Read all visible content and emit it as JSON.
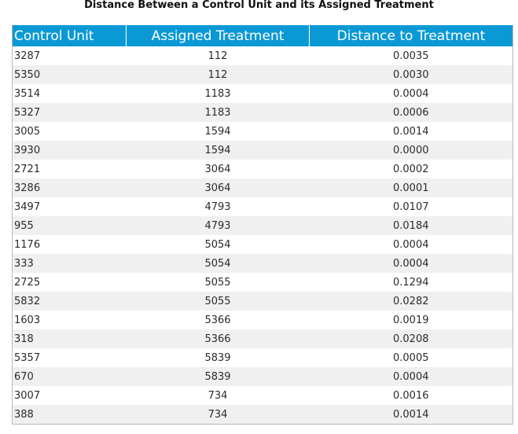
{
  "title": "Distance Between a Control Unit and its Assigned Treatment",
  "table": {
    "headers": [
      "Control Unit",
      "Assigned Treatment",
      "Distance to Treatment"
    ],
    "rows": [
      [
        "3287",
        "112",
        "0.0035"
      ],
      [
        "5350",
        "112",
        "0.0030"
      ],
      [
        "3514",
        "1183",
        "0.0004"
      ],
      [
        "5327",
        "1183",
        "0.0006"
      ],
      [
        "3005",
        "1594",
        "0.0014"
      ],
      [
        "3930",
        "1594",
        "0.0000"
      ],
      [
        "2721",
        "3064",
        "0.0002"
      ],
      [
        "3286",
        "3064",
        "0.0001"
      ],
      [
        "3497",
        "4793",
        "0.0107"
      ],
      [
        "955",
        "4793",
        "0.0184"
      ],
      [
        "1176",
        "5054",
        "0.0004"
      ],
      [
        "333",
        "5054",
        "0.0004"
      ],
      [
        "2725",
        "5055",
        "0.1294"
      ],
      [
        "5832",
        "5055",
        "0.0282"
      ],
      [
        "1603",
        "5366",
        "0.0019"
      ],
      [
        "318",
        "5366",
        "0.0208"
      ],
      [
        "5357",
        "5839",
        "0.0005"
      ],
      [
        "670",
        "5839",
        "0.0004"
      ],
      [
        "3007",
        "734",
        "0.0016"
      ],
      [
        "388",
        "734",
        "0.0014"
      ]
    ]
  },
  "colors": {
    "header_bg": "#0b99d6",
    "header_text": "#ffffff",
    "stripe": "#f0f0f0"
  }
}
